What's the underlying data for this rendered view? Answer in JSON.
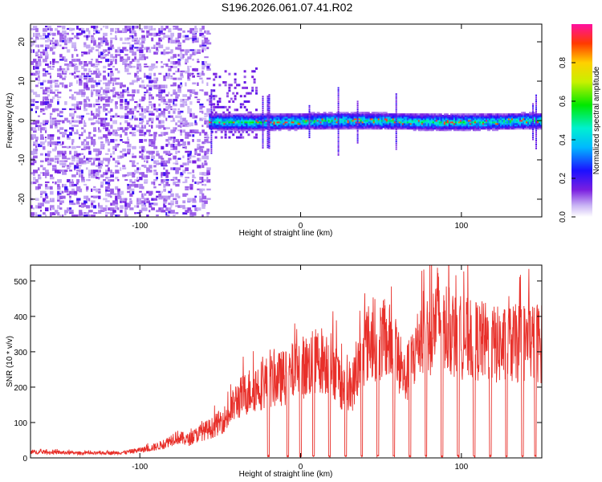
{
  "title": "S196.2026.061.07.41.R02",
  "chart_data": [
    {
      "type": "heatmap",
      "xlabel": "Height of straight line (km)",
      "ylabel": "Frequency (Hz)",
      "xlim": [
        -168,
        150
      ],
      "ylim": [
        -24.5,
        24.5
      ],
      "x_ticks": [
        -100,
        0,
        100
      ],
      "y_ticks": [
        -20,
        -10,
        0,
        10,
        20
      ],
      "colorbar": {
        "label": "Normalized spectral amplitude",
        "range": [
          0.0,
          1.0
        ],
        "ticks": [
          0.0,
          0.2,
          0.4,
          0.6,
          0.8
        ]
      }
    },
    {
      "type": "line",
      "xlabel": "Height of straight line (km)",
      "ylabel": "SNR (10 * v/v)",
      "xlim": [
        -168,
        150
      ],
      "ylim": [
        0,
        545
      ],
      "x_ticks": [
        -100,
        0,
        100
      ],
      "y_ticks": [
        0,
        100,
        200,
        300,
        400,
        500
      ],
      "color": "#e8302a",
      "series": [
        {
          "name": "SNR",
          "x": [
            -168,
            -150,
            -130,
            -110,
            -95,
            -85,
            -78,
            -70,
            -62,
            -55,
            -45,
            -40,
            -30,
            -22,
            -15,
            -8,
            -2,
            5,
            12,
            20,
            25,
            30,
            40,
            45,
            55,
            60,
            65,
            75,
            82,
            85,
            95,
            105,
            115,
            125,
            135,
            145,
            150
          ],
          "y": [
            20,
            18,
            15,
            18,
            30,
            45,
            70,
            60,
            85,
            100,
            140,
            190,
            230,
            250,
            260,
            270,
            300,
            305,
            330,
            310,
            250,
            200,
            370,
            395,
            385,
            330,
            260,
            410,
            415,
            480,
            405,
            395,
            385,
            370,
            380,
            390,
            380
          ]
        }
      ]
    }
  ]
}
